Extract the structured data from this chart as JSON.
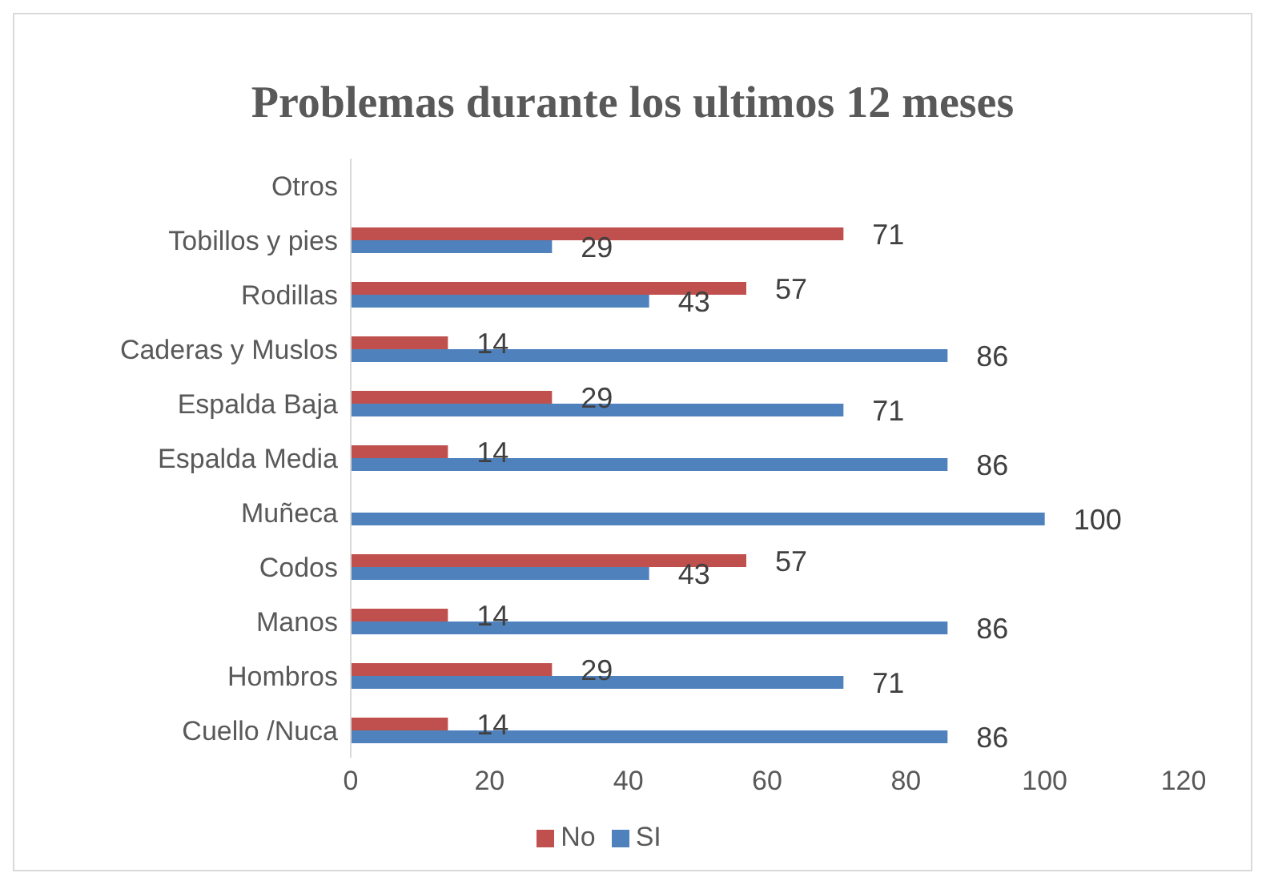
{
  "chart_data": {
    "type": "bar",
    "orientation": "horizontal",
    "title": "Problemas durante los ultimos 12 meses",
    "categories": [
      "Otros",
      "Tobillos y pies",
      "Rodillas",
      "Caderas y Muslos",
      "Espalda Baja",
      "Espalda Media",
      "Muñeca",
      "Codos",
      "Manos",
      "Hombros",
      "Cuello /Nuca"
    ],
    "series": [
      {
        "name": "No",
        "color": "#c0504d",
        "values": [
          null,
          71,
          57,
          14,
          29,
          14,
          null,
          57,
          14,
          29,
          14
        ]
      },
      {
        "name": "SI",
        "color": "#4f81bd",
        "values": [
          null,
          29,
          43,
          86,
          71,
          86,
          100,
          43,
          86,
          71,
          86
        ]
      }
    ],
    "xlim": [
      0,
      120
    ],
    "xticks": [
      0,
      20,
      40,
      60,
      80,
      100,
      120
    ],
    "grid": false,
    "legend": "bottom",
    "data_labels": true
  }
}
